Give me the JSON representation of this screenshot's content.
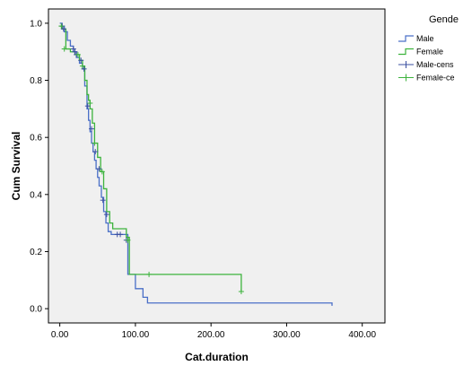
{
  "chart_data": {
    "type": "line",
    "xlabel": "Cat.duration",
    "ylabel": "Cum Survival",
    "xlim": [
      -15,
      430
    ],
    "ylim": [
      -0.05,
      1.05
    ],
    "x_ticks": [
      0,
      100,
      200,
      300,
      400
    ],
    "x_tick_labels": [
      "0.00",
      "100.00",
      "200.00",
      "300.00",
      "400.00"
    ],
    "y_ticks": [
      0.0,
      0.2,
      0.4,
      0.6,
      0.8,
      1.0
    ],
    "y_tick_labels": [
      "0.0",
      "0.2",
      "0.4",
      "0.6",
      "0.8",
      "1.0"
    ],
    "grid": false,
    "plot_background": "#f0f0f0",
    "legend": {
      "title": "Gende",
      "placement": "right",
      "entries": [
        "Male",
        "Female",
        "Male-cens",
        "Female-ce"
      ]
    },
    "series": [
      {
        "name": "Male",
        "step": true,
        "color": "#4a6fc7",
        "x": [
          0,
          3,
          6,
          10,
          14,
          18,
          22,
          26,
          30,
          33,
          36,
          38,
          40,
          42,
          44,
          46,
          48,
          50,
          52,
          55,
          58,
          61,
          64,
          68,
          72,
          90,
          100,
          110,
          116,
          360
        ],
        "y": [
          1.0,
          0.99,
          0.97,
          0.94,
          0.92,
          0.9,
          0.88,
          0.86,
          0.84,
          0.78,
          0.7,
          0.66,
          0.62,
          0.58,
          0.55,
          0.52,
          0.49,
          0.46,
          0.43,
          0.39,
          0.34,
          0.3,
          0.27,
          0.26,
          0.26,
          0.12,
          0.07,
          0.04,
          0.02,
          0.01
        ]
      },
      {
        "name": "Female",
        "step": true,
        "color": "#3db33d",
        "x": [
          0,
          3,
          8,
          14,
          20,
          26,
          30,
          33,
          36,
          38,
          40,
          43,
          46,
          50,
          54,
          58,
          62,
          66,
          70,
          88,
          92,
          240
        ],
        "y": [
          0.99,
          0.98,
          0.91,
          0.9,
          0.89,
          0.87,
          0.85,
          0.8,
          0.75,
          0.73,
          0.7,
          0.65,
          0.58,
          0.53,
          0.48,
          0.42,
          0.34,
          0.3,
          0.28,
          0.25,
          0.12,
          0.06
        ]
      }
    ],
    "censored": [
      {
        "name": "Male-cens",
        "color": "#3a4fa0",
        "x": [
          3,
          5,
          18,
          20,
          22,
          28,
          32,
          37,
          42,
          47,
          52,
          57,
          62,
          76,
          80,
          88
        ],
        "y": [
          0.99,
          0.98,
          0.91,
          0.9,
          0.89,
          0.87,
          0.84,
          0.71,
          0.63,
          0.55,
          0.49,
          0.38,
          0.33,
          0.26,
          0.26,
          0.24
        ]
      },
      {
        "name": "Female-ce",
        "color": "#3db33d",
        "x": [
          2,
          6,
          24,
          30,
          40,
          46,
          56,
          90,
          118,
          240
        ],
        "y": [
          0.99,
          0.91,
          0.89,
          0.85,
          0.72,
          0.58,
          0.48,
          0.24,
          0.12,
          0.06
        ]
      }
    ]
  }
}
